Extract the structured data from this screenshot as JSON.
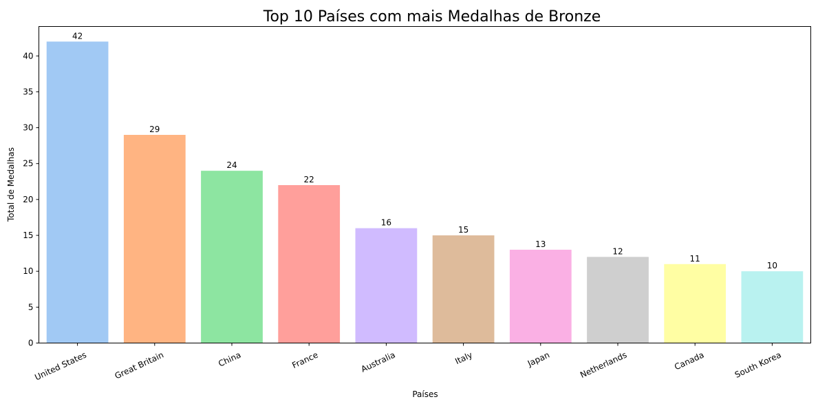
{
  "chart_data": {
    "type": "bar",
    "title": "Top 10 Países com mais Medalhas de Bronze",
    "xlabel": "Países",
    "ylabel": "Total de Medalhas",
    "categories": [
      "United States",
      "Great Britain",
      "China",
      "France",
      "Australia",
      "Italy",
      "Japan",
      "Netherlands",
      "Canada",
      "South Korea"
    ],
    "values": [
      42,
      29,
      24,
      22,
      16,
      15,
      13,
      12,
      11,
      10
    ],
    "data_labels": [
      "42",
      "29",
      "24",
      "22",
      "16",
      "15",
      "13",
      "12",
      "11",
      "10"
    ],
    "colors": [
      "#a1c9f4",
      "#ffb482",
      "#8de5a1",
      "#ff9f9b",
      "#d0bbff",
      "#debb9b",
      "#fab0e4",
      "#cfcfcf",
      "#fffea3",
      "#b9f2f0"
    ],
    "yticks": [
      0,
      5,
      10,
      15,
      20,
      25,
      30,
      35,
      40
    ],
    "ylim": [
      0,
      44.1
    ],
    "grid": false,
    "legend": "none"
  }
}
